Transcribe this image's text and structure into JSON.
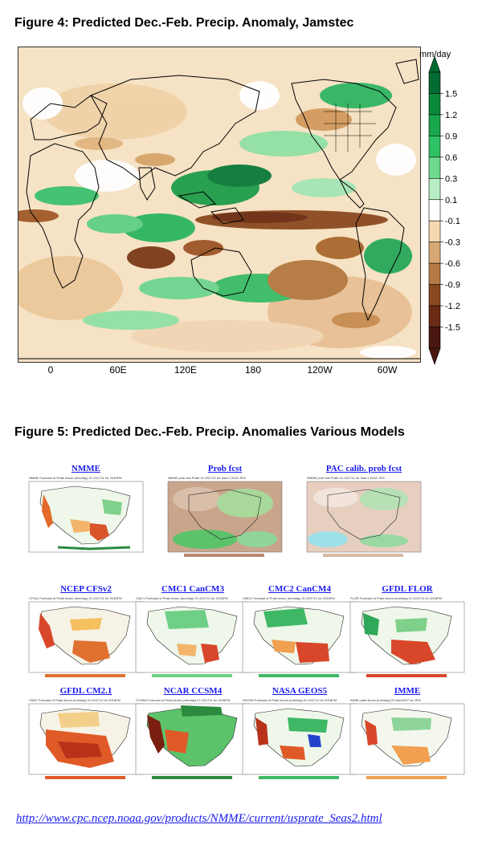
{
  "figure4": {
    "title": "Figure 4:  Predicted Dec.-Feb. Precip. Anomaly, Jamstec",
    "units": "mm/day",
    "legend_ticks": [
      "1.5",
      "1.2",
      "0.9",
      "0.6",
      "0.3",
      "0.1",
      "-0.1",
      "-0.3",
      "-0.6",
      "-0.9",
      "-1.2",
      "-1.5"
    ],
    "legend_colors": [
      "#006b32",
      "#0b8a3c",
      "#1aa64a",
      "#2ec265",
      "#6fd98e",
      "#b8eec5",
      "#ffffff",
      "#f5d8b0",
      "#d8a874",
      "#b87a44",
      "#8a4a1e",
      "#6a2a14",
      "#4a1610"
    ],
    "lon_labels": [
      "0",
      "60E",
      "120E",
      "180",
      "120W",
      "60W"
    ]
  },
  "figure5": {
    "title": "Figure 5:  Predicted Dec.-Feb. Precip. Anomalies Various Models",
    "panels": [
      {
        "label": "NMME",
        "subtitle": "NMME Forecast of Prate Anom (mm/day) IC=201711 for 2018FM"
      },
      {
        "label": "Prob fcst",
        "subtitle": "NMME prob fcst Prate IC=201711 for lead 2 2018 JFM"
      },
      {
        "label": "PAC calib. prob fcst",
        "subtitle": "NMME prob fcst Prate IC=201711 for lead 2 2018 JFM"
      },
      {
        "label": "NCEP  CFSv2",
        "subtitle": "CFSv2 Forecast of Prate Anom (mm/day) IC=201711 for 2018FM"
      },
      {
        "label": "CMC1  CanCM3",
        "subtitle": "CMC1 Forecast of Prate Anom (mm/day) IC=201711 for 2018FM"
      },
      {
        "label": "CMC2  CanCM4",
        "subtitle": "CMC2 Forecast of Prate Anom (mm/day) IC=201711 for 2018FM"
      },
      {
        "label": "GFDL  FLOR",
        "subtitle": "FLOR Forecast of Prate Anom (mm/day) IC=201711 for 2018FM"
      },
      {
        "label": "GFDL  CM2.1",
        "subtitle": "CM21 Forecast of Prate Anom (mm/day) IC=201711 for 2018FM"
      },
      {
        "label": "NCAR  CCSM4",
        "subtitle": "CCSM4 Forecast of Prate Anom (mm/day) IC=201711 for 2018FM"
      },
      {
        "label": "NASA  GEOS5",
        "subtitle": "GEOS5 Forecast of Prate Anom (mm/day) IC=201711 for 2018FM"
      },
      {
        "label": "IMME",
        "subtitle": "IMME prate Anom [mm/day] IC=Nov2017 for JFM"
      }
    ]
  },
  "footer": {
    "link": "http://www.cpc.ncep.noaa.gov/products/NMME/current/usprate_Seas2.html"
  }
}
